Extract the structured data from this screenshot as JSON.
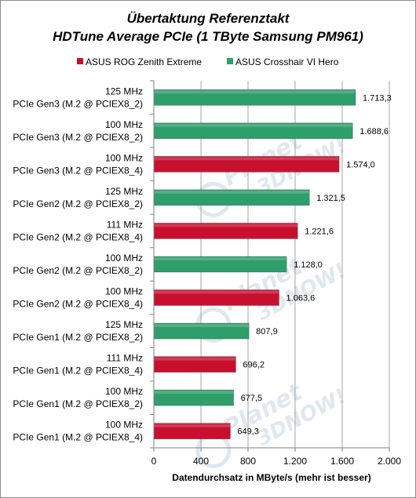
{
  "chart_data": {
    "type": "bar",
    "orientation": "horizontal",
    "title": "Übertaktung Referenztakt",
    "subtitle": "HDTune Average PCIe (1 TByte Samsung PM961)",
    "xlabel": "Datendurchsatz in MByte/s (mehr ist besser)",
    "xlim": [
      0,
      2000
    ],
    "x_ticks": [
      {
        "value": 0,
        "label": "0"
      },
      {
        "value": 400,
        "label": "400"
      },
      {
        "value": 800,
        "label": "800"
      },
      {
        "value": 1200,
        "label": "1.200"
      },
      {
        "value": 1600,
        "label": "1.600"
      },
      {
        "value": 2000,
        "label": "2.000"
      }
    ],
    "grid": "vertical",
    "legend_position": "top",
    "legend": [
      {
        "name": "ASUS ROG Zenith Extreme",
        "color": "#c8102e"
      },
      {
        "name": "ASUS Crosshair VI Hero",
        "color": "#2e9e6b"
      }
    ],
    "bars": [
      {
        "line1": "125 MHz",
        "line2": "PCIe Gen3 (M.2 @ PCIEX8_2)",
        "value": 1713.3,
        "label": "1.713,3",
        "series": "ASUS Crosshair VI Hero"
      },
      {
        "line1": "100 MHz",
        "line2": "PCIe Gen3 (M.2 @ PCIEX8_2)",
        "value": 1688.6,
        "label": "1.688,6",
        "series": "ASUS Crosshair VI Hero"
      },
      {
        "line1": "100 MHz",
        "line2": "PCIe Gen3 (M.2 @ PCIEX8_4)",
        "value": 1574.0,
        "label": "1.574,0",
        "series": "ASUS ROG Zenith Extreme"
      },
      {
        "line1": "125 MHz",
        "line2": "PCIe Gen2 (M.2 @ PCIEX8_2)",
        "value": 1321.5,
        "label": "1.321,5",
        "series": "ASUS Crosshair VI Hero"
      },
      {
        "line1": "111 MHz",
        "line2": "PCIe Gen2 (M.2 @ PCIEX8_4)",
        "value": 1221.6,
        "label": "1.221,6",
        "series": "ASUS ROG Zenith Extreme"
      },
      {
        "line1": "100 MHz",
        "line2": "PCIe Gen2 (M.2 @ PCIEX8_2)",
        "value": 1128.0,
        "label": "1.128,0",
        "series": "ASUS Crosshair VI Hero"
      },
      {
        "line1": "100 MHz",
        "line2": "PCIe Gen2 (M.2 @ PCIEX8_4)",
        "value": 1063.6,
        "label": "1.063,6",
        "series": "ASUS ROG Zenith Extreme"
      },
      {
        "line1": "125 MHz",
        "line2": "PCIe Gen1 (M.2 @ PCIEX8_2)",
        "value": 807.9,
        "label": "807,9",
        "series": "ASUS Crosshair VI Hero"
      },
      {
        "line1": "111 MHz",
        "line2": "PCIe Gen1 (M.2 @ PCIEX8_4)",
        "value": 696.2,
        "label": "696,2",
        "series": "ASUS ROG Zenith Extreme"
      },
      {
        "line1": "100 MHz",
        "line2": "PCIe Gen1 (M.2 @ PCIEX8_2)",
        "value": 677.5,
        "label": "677,5",
        "series": "ASUS Crosshair VI Hero"
      },
      {
        "line1": "100 MHz",
        "line2": "PCIe Gen1 (M.2 @ PCIEX8_4)",
        "value": 649.3,
        "label": "649,3",
        "series": "ASUS ROG Zenith Extreme"
      }
    ]
  },
  "watermark": {
    "primary": "Planet",
    "secondary": "3DNOW!",
    "color": "#dfe8f0"
  }
}
